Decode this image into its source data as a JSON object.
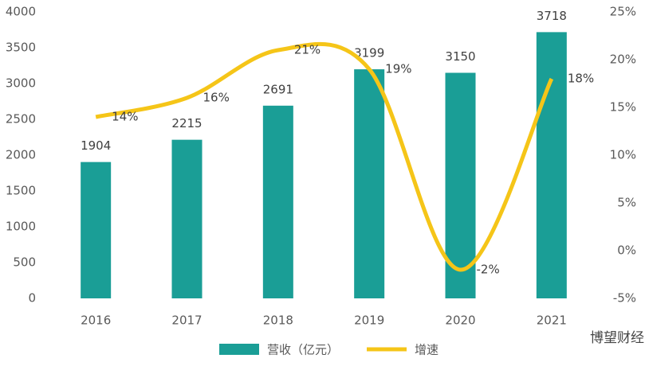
{
  "chart_data": {
    "type": "bar",
    "categories": [
      "2016",
      "2017",
      "2018",
      "2019",
      "2020",
      "2021"
    ],
    "series": [
      {
        "name": "营收（亿元）",
        "type": "bar",
        "color": "#1a9e96",
        "values": [
          1904,
          2215,
          2691,
          3199,
          3150,
          3718
        ]
      },
      {
        "name": "增速",
        "type": "line",
        "axis": "y2",
        "color": "#f5c518",
        "values": [
          14,
          16,
          21,
          19,
          -2,
          18
        ],
        "value_labels": [
          "14%",
          "16%",
          "21%",
          "19%",
          "-2%",
          "18%"
        ]
      }
    ],
    "ylim": [
      0,
      4000
    ],
    "yticks": [
      0,
      500,
      1000,
      1500,
      2000,
      2500,
      3000,
      3500,
      4000
    ],
    "y2lim": [
      -5,
      25
    ],
    "y2ticks": [
      {
        "value": -5,
        "label": "-5%"
      },
      {
        "value": 0,
        "label": "0%"
      },
      {
        "value": 5,
        "label": "5%"
      },
      {
        "value": 10,
        "label": "10%"
      },
      {
        "value": 15,
        "label": "15%"
      },
      {
        "value": 20,
        "label": "20%"
      },
      {
        "value": 25,
        "label": "25%"
      }
    ],
    "grid": false,
    "legend": "bottom",
    "source_logo": "博望财经"
  }
}
